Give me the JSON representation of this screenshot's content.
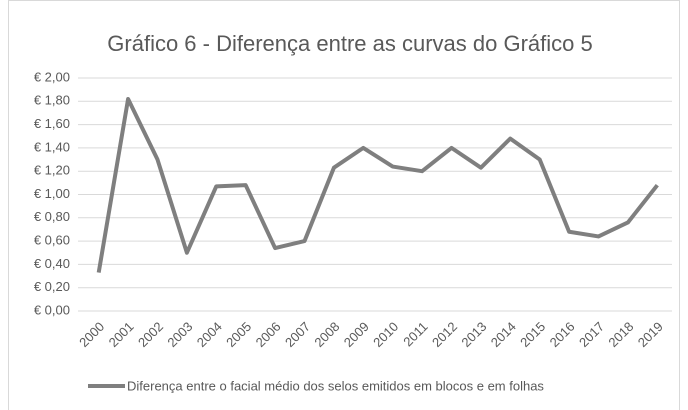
{
  "chart_data": {
    "type": "line",
    "title": "Gráfico 6 - Diferença entre as curvas do Gráfico 5",
    "categories": [
      "2000",
      "2001",
      "2002",
      "2003",
      "2004",
      "2005",
      "2006",
      "2007",
      "2008",
      "2009",
      "2010",
      "2011",
      "2012",
      "2013",
      "2014",
      "2015",
      "2016",
      "2017",
      "2018",
      "2019"
    ],
    "series": [
      {
        "name": "Diferença entre o facial médio dos selos emitidos em blocos e em folhas",
        "color": "#7f7f7f",
        "values": [
          0.33,
          1.82,
          1.3,
          0.5,
          1.07,
          1.08,
          0.54,
          0.6,
          1.23,
          1.4,
          1.24,
          1.2,
          1.4,
          1.23,
          1.48,
          1.3,
          0.68,
          0.64,
          0.76,
          1.08
        ]
      }
    ],
    "ylim": [
      0,
      2
    ],
    "yticks": [
      {
        "value": 0,
        "label": "€ 0,00"
      },
      {
        "value": 0.2,
        "label": "€ 0,20"
      },
      {
        "value": 0.4,
        "label": "€ 0,40"
      },
      {
        "value": 0.6,
        "label": "€ 0,60"
      },
      {
        "value": 0.8,
        "label": "€ 0,80"
      },
      {
        "value": 1,
        "label": "€ 1,00"
      },
      {
        "value": 1.2,
        "label": "€ 1,20"
      },
      {
        "value": 1.4,
        "label": "€ 1,40"
      },
      {
        "value": 1.6,
        "label": "€ 1,60"
      },
      {
        "value": 1.8,
        "label": "€ 1,80"
      },
      {
        "value": 2,
        "label": "€ 2,00"
      }
    ],
    "grid": true,
    "legend": "bottom"
  }
}
